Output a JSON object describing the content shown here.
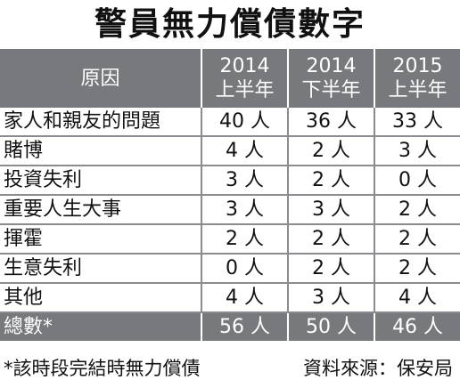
{
  "title": "警員無力償債數字",
  "table": {
    "headers": [
      {
        "line1": "原因",
        "line2": ""
      },
      {
        "line1": "2014",
        "line2": "上半年"
      },
      {
        "line1": "2014",
        "line2": "下半年"
      },
      {
        "line1": "2015",
        "line2": "上半年"
      }
    ],
    "rows": [
      {
        "reason": "家人和親友的問題",
        "values": [
          "40 人",
          "36 人",
          "33 人"
        ]
      },
      {
        "reason": "賭博",
        "values": [
          "4 人",
          "2 人",
          "3 人"
        ]
      },
      {
        "reason": "投資失利",
        "values": [
          "3 人",
          "2 人",
          "0 人"
        ]
      },
      {
        "reason": "重要人生大事",
        "values": [
          "3 人",
          "3 人",
          "2 人"
        ]
      },
      {
        "reason": "揮霍",
        "values": [
          "2 人",
          "2 人",
          "2 人"
        ]
      },
      {
        "reason": "生意失利",
        "values": [
          "0 人",
          "2 人",
          "2 人"
        ]
      },
      {
        "reason": "其他",
        "values": [
          "4 人",
          "3 人",
          "4 人"
        ]
      }
    ],
    "total": {
      "reason": "總數*",
      "values": [
        "56 人",
        "50 人",
        "46 人"
      ]
    }
  },
  "footer": {
    "note": "*該時段完結時無力償債",
    "source": "資料來源：保安局"
  },
  "colors": {
    "header_bg": "#77797c",
    "grid": "#8a8c8f"
  }
}
